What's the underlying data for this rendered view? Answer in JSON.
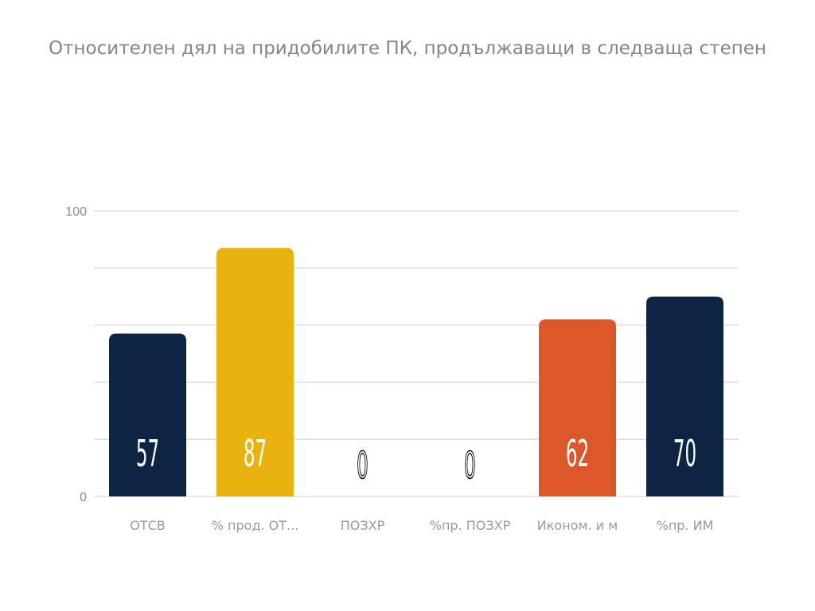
{
  "chart_data": {
    "type": "bar",
    "title": "Относителен дял на придобилите ПК, продължаващи в следваща степен",
    "categories": [
      "ОТСВ",
      "% прод. ОТ...",
      "ПОЗХР",
      "%пр. ПОЗХР",
      "Иконом. и м",
      "%пр. ИМ"
    ],
    "values": [
      57,
      87,
      0,
      0,
      62,
      70
    ],
    "value_labels": [
      "57",
      "87",
      "0",
      "0",
      "62",
      "70"
    ],
    "colors": [
      "#0d2443",
      "#e8b30f",
      "#0d2443",
      "#0d2443",
      "#dc582a",
      "#0d2443"
    ],
    "ylim": [
      0,
      100
    ],
    "y_ticks": [
      0,
      100
    ],
    "gridlines": [
      0,
      20,
      40,
      60,
      80,
      100
    ],
    "grid": true,
    "xlabel": "",
    "ylabel": ""
  }
}
